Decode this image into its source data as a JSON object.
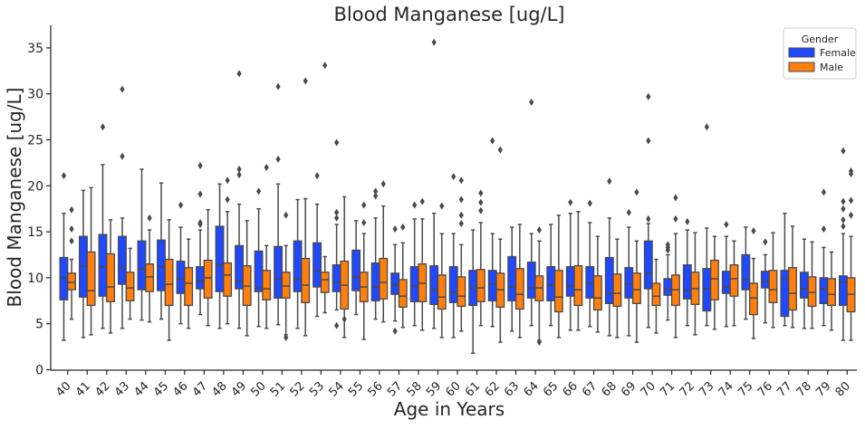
{
  "chart_data": {
    "type": "box",
    "title": "Blood Manganese [ug/L]",
    "xlabel": "Age in Years",
    "ylabel": "Blood Manganese [ug/L]",
    "ylim": [
      0,
      37
    ],
    "yticks": [
      0,
      5,
      10,
      15,
      20,
      25,
      30,
      35
    ],
    "grid": false,
    "legend": {
      "title": "Gender",
      "placement": "top-right"
    },
    "categories": [
      "40",
      "41",
      "42",
      "43",
      "44",
      "45",
      "46",
      "47",
      "48",
      "49",
      "50",
      "51",
      "52",
      "53",
      "54",
      "55",
      "56",
      "57",
      "58",
      "59",
      "60",
      "61",
      "62",
      "63",
      "64",
      "65",
      "66",
      "67",
      "68",
      "69",
      "70",
      "71",
      "72",
      "73",
      "74",
      "75",
      "76",
      "77",
      "78",
      "79",
      "80"
    ],
    "series": [
      {
        "name": "Female",
        "color": "#1f48ff",
        "boxes": [
          {
            "whislo": 3.2,
            "q1": 7.6,
            "med": 10.0,
            "q3": 12.2,
            "whishi": 17.0,
            "fliers": [
              21.1
            ]
          },
          {
            "whislo": 3.5,
            "q1": 7.9,
            "med": 11.3,
            "q3": 14.5,
            "whishi": 19.5,
            "fliers": []
          },
          {
            "whislo": 4.5,
            "q1": 8.0,
            "med": 11.2,
            "q3": 14.7,
            "whishi": 22.3,
            "fliers": [
              26.4
            ]
          },
          {
            "whislo": 4.5,
            "q1": 9.3,
            "med": 11.1,
            "q3": 14.5,
            "whishi": 16.5,
            "fliers": [
              23.2,
              30.5
            ]
          },
          {
            "whislo": 5.4,
            "q1": 8.7,
            "med": 11.0,
            "q3": 14.0,
            "whishi": 21.8,
            "fliers": []
          },
          {
            "whislo": 5.5,
            "q1": 8.6,
            "med": 11.2,
            "q3": 14.1,
            "whishi": 20.3,
            "fliers": []
          },
          {
            "whislo": 5.0,
            "q1": 8.3,
            "med": 9.9,
            "q3": 11.8,
            "whishi": 15.5,
            "fliers": [
              17.9
            ]
          },
          {
            "whislo": 6.0,
            "q1": 8.8,
            "med": 9.7,
            "q3": 11.2,
            "whishi": 15.2,
            "fliers": [
              15.8,
              16.0,
              19.1,
              22.2
            ]
          },
          {
            "whislo": 4.5,
            "q1": 8.5,
            "med": 11.4,
            "q3": 15.6,
            "whishi": 20.2,
            "fliers": []
          },
          {
            "whislo": 4.5,
            "q1": 8.8,
            "med": 9.6,
            "q3": 13.5,
            "whishi": 18.0,
            "fliers": [
              21.2,
              21.8,
              32.2
            ]
          },
          {
            "whislo": 4.7,
            "q1": 8.5,
            "med": 8.9,
            "q3": 12.9,
            "whishi": 17.5,
            "fliers": [
              19.4
            ]
          },
          {
            "whislo": 4.9,
            "q1": 7.8,
            "med": 9.9,
            "q3": 13.4,
            "whishi": 20.2,
            "fliers": [
              22.9,
              30.8
            ]
          },
          {
            "whislo": 4.5,
            "q1": 8.5,
            "med": 9.9,
            "q3": 14.0,
            "whishi": 18.5,
            "fliers": []
          },
          {
            "whislo": 5.8,
            "q1": 9.0,
            "med": 10.8,
            "q3": 13.8,
            "whishi": 18.0,
            "fliers": [
              21.1
            ]
          },
          {
            "whislo": 6.5,
            "q1": 8.5,
            "med": 9.5,
            "q3": 11.4,
            "whishi": 15.8,
            "fliers": [
              4.8,
              16.5,
              17.1,
              24.7
            ]
          },
          {
            "whislo": 6.0,
            "q1": 8.6,
            "med": 10.1,
            "q3": 13.0,
            "whishi": 16.2,
            "fliers": []
          },
          {
            "whislo": 5.5,
            "q1": 7.5,
            "med": 9.0,
            "q3": 11.6,
            "whishi": 16.5,
            "fliers": [
              18.9,
              19.4
            ]
          },
          {
            "whislo": 5.3,
            "q1": 8.2,
            "med": 9.2,
            "q3": 10.5,
            "whishi": 13.6,
            "fliers": [
              4.2,
              15.3
            ]
          },
          {
            "whislo": 4.8,
            "q1": 7.4,
            "med": 9.1,
            "q3": 11.2,
            "whishi": 16.4,
            "fliers": [
              17.9
            ]
          },
          {
            "whislo": 4.5,
            "q1": 7.1,
            "med": 8.7,
            "q3": 11.3,
            "whishi": 17.0,
            "fliers": [
              35.6
            ]
          },
          {
            "whislo": 3.5,
            "q1": 7.3,
            "med": 8.4,
            "q3": 11.2,
            "whishi": 14.8,
            "fliers": [
              21.0
            ]
          },
          {
            "whislo": 1.8,
            "q1": 7.0,
            "med": 8.9,
            "q3": 10.8,
            "whishi": 15.2,
            "fliers": []
          },
          {
            "whislo": 4.7,
            "q1": 7.5,
            "med": 9.3,
            "q3": 10.8,
            "whishi": 14.8,
            "fliers": [
              24.9
            ]
          },
          {
            "whislo": 4.2,
            "q1": 7.5,
            "med": 9.0,
            "q3": 12.3,
            "whishi": 15.5,
            "fliers": []
          },
          {
            "whislo": 4.8,
            "q1": 7.8,
            "med": 8.9,
            "q3": 11.7,
            "whishi": 14.8,
            "fliers": [
              29.1
            ]
          },
          {
            "whislo": 4.8,
            "q1": 7.5,
            "med": 9.2,
            "q3": 11.2,
            "whishi": 15.8,
            "fliers": []
          },
          {
            "whislo": 4.3,
            "q1": 8.0,
            "med": 9.1,
            "q3": 11.2,
            "whishi": 17.0,
            "fliers": [
              18.2
            ]
          },
          {
            "whislo": 4.7,
            "q1": 7.8,
            "med": 9.4,
            "q3": 11.2,
            "whishi": 16.0,
            "fliers": [
              18.1
            ]
          },
          {
            "whislo": 3.7,
            "q1": 7.2,
            "med": 8.3,
            "q3": 12.2,
            "whishi": 16.5,
            "fliers": [
              20.5
            ]
          },
          {
            "whislo": 3.7,
            "q1": 7.8,
            "med": 9.3,
            "q3": 11.1,
            "whishi": 15.5,
            "fliers": [
              17.1
            ]
          },
          {
            "whislo": 4.6,
            "q1": 8.8,
            "med": 10.5,
            "q3": 14.0,
            "whishi": 15.9,
            "fliers": [
              16.4,
              24.9,
              29.7
            ]
          },
          {
            "whislo": 5.4,
            "q1": 8.1,
            "med": 8.7,
            "q3": 9.9,
            "whishi": 12.5,
            "fliers": [
              13.0,
              13.3,
              13.6
            ]
          },
          {
            "whislo": 4.8,
            "q1": 7.7,
            "med": 8.6,
            "q3": 11.4,
            "whishi": 15.2,
            "fliers": [
              16.1
            ]
          },
          {
            "whislo": 4.8,
            "q1": 6.4,
            "med": 8.8,
            "q3": 11.0,
            "whishi": 15.4,
            "fliers": [
              26.4
            ]
          },
          {
            "whislo": 4.7,
            "q1": 8.3,
            "med": 9.0,
            "q3": 10.7,
            "whishi": 14.5,
            "fliers": [
              15.8
            ]
          },
          {
            "whislo": 5.5,
            "q1": 8.7,
            "med": 9.8,
            "q3": 12.5,
            "whishi": 15.5,
            "fliers": []
          },
          {
            "whislo": 5.1,
            "q1": 8.9,
            "med": 9.6,
            "q3": 10.7,
            "whishi": 12.5,
            "fliers": [
              13.9
            ]
          },
          {
            "whislo": 4.8,
            "q1": 5.8,
            "med": 9.9,
            "q3": 10.8,
            "whishi": 17.0,
            "fliers": []
          },
          {
            "whislo": 4.5,
            "q1": 7.8,
            "med": 8.8,
            "q3": 10.6,
            "whishi": 14.2,
            "fliers": []
          },
          {
            "whislo": 4.8,
            "q1": 7.2,
            "med": 8.8,
            "q3": 10.0,
            "whishi": 13.3,
            "fliers": [
              15.3,
              19.3
            ]
          },
          {
            "whislo": 3.2,
            "q1": 7.0,
            "med": 9.5,
            "q3": 10.2,
            "whishi": 14.8,
            "fliers": [
              15.6,
              16.3,
              17.5,
              18.3,
              23.8
            ]
          }
        ]
      },
      {
        "name": "Male",
        "color": "#ff7f0e",
        "boxes": [
          {
            "whislo": 5.5,
            "q1": 8.7,
            "med": 9.5,
            "q3": 10.5,
            "whishi": 12.0,
            "fliers": [
              14.0,
              15.3,
              17.4
            ]
          },
          {
            "whislo": 3.8,
            "q1": 7.0,
            "med": 8.6,
            "q3": 12.8,
            "whishi": 19.8,
            "fliers": []
          },
          {
            "whislo": 4.0,
            "q1": 7.4,
            "med": 9.0,
            "q3": 12.6,
            "whishi": 16.3,
            "fliers": []
          },
          {
            "whislo": 5.5,
            "q1": 7.5,
            "med": 8.9,
            "q3": 10.6,
            "whishi": 13.2,
            "fliers": []
          },
          {
            "whislo": 5.2,
            "q1": 8.5,
            "med": 10.1,
            "q3": 11.5,
            "whishi": 15.2,
            "fliers": [
              16.5
            ]
          },
          {
            "whislo": 3.2,
            "q1": 7.0,
            "med": 9.3,
            "q3": 12.0,
            "whishi": 16.3,
            "fliers": []
          },
          {
            "whislo": 4.5,
            "q1": 7.0,
            "med": 9.4,
            "q3": 11.1,
            "whishi": 14.2,
            "fliers": []
          },
          {
            "whislo": 4.8,
            "q1": 7.8,
            "med": 10.0,
            "q3": 11.9,
            "whishi": 17.4,
            "fliers": []
          },
          {
            "whislo": 5.0,
            "q1": 8.0,
            "med": 10.3,
            "q3": 11.6,
            "whishi": 17.2,
            "fliers": [
              18.5,
              20.6
            ]
          },
          {
            "whislo": 3.7,
            "q1": 7.0,
            "med": 9.1,
            "q3": 11.3,
            "whishi": 16.2,
            "fliers": []
          },
          {
            "whislo": 4.5,
            "q1": 7.6,
            "med": 8.8,
            "q3": 10.8,
            "whishi": 13.5,
            "fliers": [
              22.0
            ]
          },
          {
            "whislo": 3.8,
            "q1": 7.8,
            "med": 9.1,
            "q3": 10.6,
            "whishi": 13.5,
            "fliers": [
              3.5,
              16.8
            ]
          },
          {
            "whislo": 3.7,
            "q1": 7.3,
            "med": 9.2,
            "q3": 12.1,
            "whishi": 18.6,
            "fliers": [
              31.4
            ]
          },
          {
            "whislo": 6.2,
            "q1": 8.4,
            "med": 9.8,
            "q3": 10.6,
            "whishi": 12.3,
            "fliers": [
              33.1
            ]
          },
          {
            "whislo": 3.5,
            "q1": 6.6,
            "med": 9.2,
            "q3": 11.8,
            "whishi": 18.8,
            "fliers": [
              5.5
            ]
          },
          {
            "whislo": 3.3,
            "q1": 7.4,
            "med": 9.0,
            "q3": 10.6,
            "whishi": 14.8,
            "fliers": [
              16.0,
              17.9
            ]
          },
          {
            "whislo": 5.2,
            "q1": 7.7,
            "med": 9.5,
            "q3": 12.1,
            "whishi": 17.8,
            "fliers": [
              20.2
            ]
          },
          {
            "whislo": 4.6,
            "q1": 6.8,
            "med": 8.0,
            "q3": 9.8,
            "whishi": 13.8,
            "fliers": [
              15.5
            ]
          },
          {
            "whislo": 4.3,
            "q1": 7.4,
            "med": 9.4,
            "q3": 11.5,
            "whishi": 16.4,
            "fliers": [
              18.3
            ]
          },
          {
            "whislo": 3.5,
            "q1": 6.6,
            "med": 7.9,
            "q3": 10.3,
            "whishi": 14.8,
            "fliers": [
              17.8
            ]
          },
          {
            "whislo": 4.2,
            "q1": 6.9,
            "med": 8.0,
            "q3": 10.1,
            "whishi": 13.6,
            "fliers": [
              15.9,
              16.8,
              18.5,
              20.6
            ]
          },
          {
            "whislo": 4.8,
            "q1": 7.4,
            "med": 8.9,
            "q3": 10.9,
            "whishi": 16.0,
            "fliers": [
              17.3,
              18.2,
              19.2
            ]
          },
          {
            "whislo": 3.0,
            "q1": 6.8,
            "med": 8.7,
            "q3": 10.5,
            "whishi": 14.2,
            "fliers": [
              23.9
            ]
          },
          {
            "whislo": 3.5,
            "q1": 6.6,
            "med": 8.2,
            "q3": 11.0,
            "whishi": 15.8,
            "fliers": []
          },
          {
            "whislo": 3.2,
            "q1": 7.5,
            "med": 8.9,
            "q3": 10.2,
            "whishi": 14.0,
            "fliers": [
              3.0,
              15.2
            ]
          },
          {
            "whislo": 3.5,
            "q1": 6.3,
            "med": 7.9,
            "q3": 10.8,
            "whishi": 16.8,
            "fliers": []
          },
          {
            "whislo": 4.3,
            "q1": 7.0,
            "med": 8.7,
            "q3": 11.3,
            "whishi": 17.2,
            "fliers": []
          },
          {
            "whislo": 4.1,
            "q1": 6.5,
            "med": 7.8,
            "q3": 10.2,
            "whishi": 14.5,
            "fliers": []
          },
          {
            "whislo": 3.5,
            "q1": 6.9,
            "med": 8.3,
            "q3": 10.4,
            "whishi": 14.2,
            "fliers": []
          },
          {
            "whislo": 3.0,
            "q1": 7.2,
            "med": 8.7,
            "q3": 10.5,
            "whishi": 14.0,
            "fliers": [
              19.3
            ]
          },
          {
            "whislo": 4.0,
            "q1": 7.0,
            "med": 8.0,
            "q3": 9.4,
            "whishi": 12.0,
            "fliers": []
          },
          {
            "whislo": 3.5,
            "q1": 7.0,
            "med": 8.7,
            "q3": 10.3,
            "whishi": 14.8,
            "fliers": [
              16.4,
              18.7
            ]
          },
          {
            "whislo": 3.8,
            "q1": 7.1,
            "med": 8.8,
            "q3": 10.6,
            "whishi": 14.9,
            "fliers": []
          },
          {
            "whislo": 4.4,
            "q1": 7.6,
            "med": 9.9,
            "q3": 11.9,
            "whishi": 14.5,
            "fliers": []
          },
          {
            "whislo": 4.8,
            "q1": 8.0,
            "med": 9.9,
            "q3": 11.4,
            "whishi": 14.0,
            "fliers": []
          },
          {
            "whislo": 3.4,
            "q1": 6.0,
            "med": 7.8,
            "q3": 9.4,
            "whishi": 12.1,
            "fliers": [
              15.1
            ]
          },
          {
            "whislo": 4.6,
            "q1": 7.3,
            "med": 8.7,
            "q3": 10.8,
            "whishi": 14.9,
            "fliers": []
          },
          {
            "whislo": 4.6,
            "q1": 6.5,
            "med": 8.3,
            "q3": 11.1,
            "whishi": 15.6,
            "fliers": []
          },
          {
            "whislo": 4.5,
            "q1": 6.9,
            "med": 8.4,
            "q3": 10.1,
            "whishi": 13.9,
            "fliers": []
          },
          {
            "whislo": 4.3,
            "q1": 7.0,
            "med": 8.2,
            "q3": 9.9,
            "whishi": 12.8,
            "fliers": []
          },
          {
            "whislo": 3.2,
            "q1": 6.3,
            "med": 8.2,
            "q3": 10.0,
            "whishi": 14.5,
            "fliers": [
              16.8,
              18.4,
              21.3,
              21.6
            ]
          }
        ]
      }
    ]
  }
}
